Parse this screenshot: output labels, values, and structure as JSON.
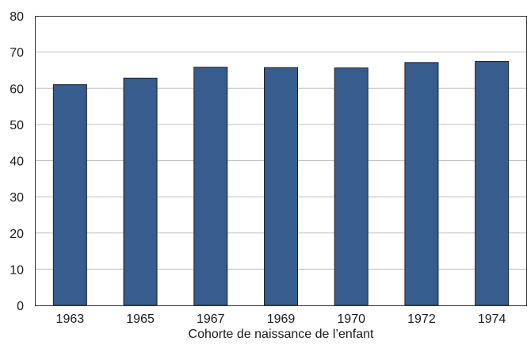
{
  "chart_data": {
    "type": "bar",
    "categories": [
      "1963",
      "1965",
      "1967",
      "1969",
      "1970",
      "1972",
      "1974"
    ],
    "values": [
      61,
      62.8,
      65.8,
      65.7,
      65.6,
      67.1,
      67.4
    ],
    "title": "",
    "xlabel": "Cohorte de naissance de l’enfant",
    "ylabel": "",
    "ylim": [
      0,
      80
    ],
    "yticks": [
      0,
      10,
      20,
      30,
      40,
      50,
      60,
      70,
      80
    ],
    "grid": true,
    "legend": "none",
    "bar_color": "#375d8f",
    "bar_edge_color": "#1f1f1f",
    "grid_color": "#bfbfbf",
    "axis_color": "#333333"
  }
}
